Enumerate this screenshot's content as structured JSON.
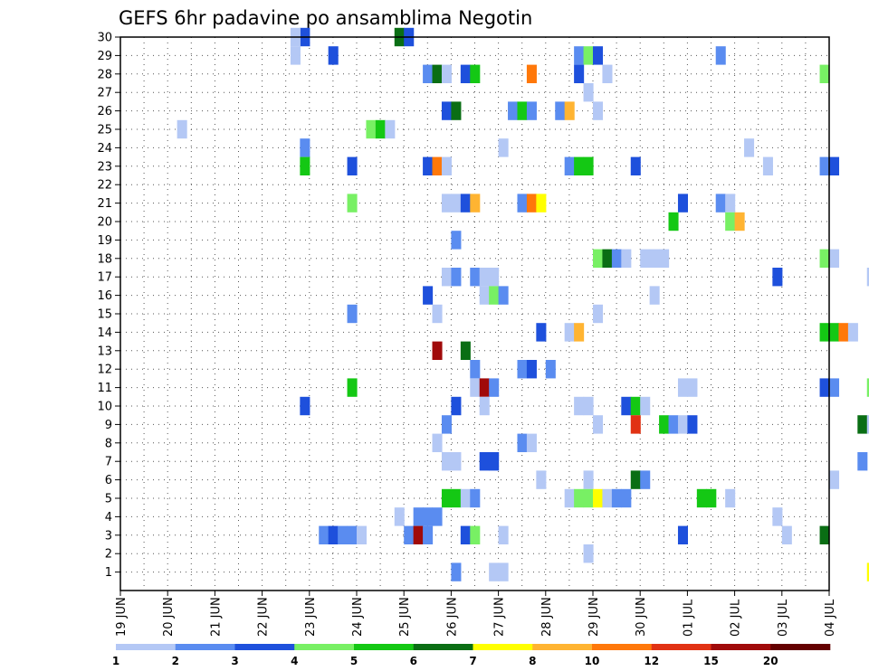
{
  "chart_data": {
    "type": "heatmap",
    "title": "GEFS 6hr padavine po ansamblima Negotin",
    "xlabel": "",
    "ylabel": "",
    "x_tick_labels": [
      "19 JUN",
      "20 JUN",
      "21 JUN",
      "22 JUN",
      "23 JUN",
      "24 JUN",
      "25 JUN",
      "26 JUN",
      "27 JUN",
      "28 JUN",
      "29 JUN",
      "30 JUN",
      "01 JUL",
      "02 JUL",
      "03 JUL",
      "04 JUL"
    ],
    "y_tick_labels": [
      "1",
      "2",
      "3",
      "4",
      "5",
      "6",
      "7",
      "8",
      "9",
      "10",
      "11",
      "12",
      "13",
      "14",
      "15",
      "16",
      "17",
      "18",
      "19",
      "20",
      "21",
      "22",
      "23",
      "24",
      "25",
      "26",
      "27",
      "28",
      "29",
      "30"
    ],
    "grid": true,
    "colorbar": {
      "placement": "bottom",
      "labels": [
        "1",
        "2",
        "3",
        "4",
        "5",
        "6",
        "7",
        "8",
        "10",
        "12",
        "15",
        "20"
      ],
      "colors": [
        "#b4c8f5",
        "#5a8cf0",
        "#1e50dc",
        "#78f064",
        "#14c814",
        "#0a6e14",
        "#ffff00",
        "#ffb432",
        "#ff780a",
        "#e13214",
        "#a00a0a",
        "#640000"
      ]
    },
    "cells": [
      {
        "member": 30,
        "day": 22.8,
        "cls": 3
      },
      {
        "member": 30,
        "day": 24.8,
        "cls": 6
      },
      {
        "member": 30,
        "day": 25.0,
        "cls": 3
      },
      {
        "member": 30,
        "day": 22.6,
        "cls": 1
      },
      {
        "member": 29,
        "day": 22.6,
        "cls": 1
      },
      {
        "member": 29,
        "day": 23.4,
        "cls": 3
      },
      {
        "member": 29,
        "day": 28.6,
        "cls": 2
      },
      {
        "member": 29,
        "day": 28.8,
        "cls": 4
      },
      {
        "member": 29,
        "day": 29.0,
        "cls": 3
      },
      {
        "member": 29,
        "day": 31.6,
        "cls": 2
      },
      {
        "member": 28,
        "day": 25.4,
        "cls": 2
      },
      {
        "member": 28,
        "day": 25.6,
        "cls": 6
      },
      {
        "member": 28,
        "day": 25.8,
        "cls": 1
      },
      {
        "member": 28,
        "day": 26.2,
        "cls": 3
      },
      {
        "member": 28,
        "day": 26.4,
        "cls": 5
      },
      {
        "member": 28,
        "day": 27.6,
        "cls": 9
      },
      {
        "member": 28,
        "day": 28.6,
        "cls": 3
      },
      {
        "member": 28,
        "day": 29.2,
        "cls": 1
      },
      {
        "member": 28,
        "day": 33.8,
        "cls": 4
      },
      {
        "member": 27,
        "day": 28.8,
        "cls": 1
      },
      {
        "member": 26,
        "day": 25.8,
        "cls": 3
      },
      {
        "member": 26,
        "day": 26.0,
        "cls": 6
      },
      {
        "member": 26,
        "day": 27.2,
        "cls": 2
      },
      {
        "member": 26,
        "day": 27.4,
        "cls": 5
      },
      {
        "member": 26,
        "day": 27.6,
        "cls": 2
      },
      {
        "member": 26,
        "day": 28.2,
        "cls": 2
      },
      {
        "member": 26,
        "day": 28.4,
        "cls": 8
      },
      {
        "member": 26,
        "day": 29.0,
        "cls": 1
      },
      {
        "member": 25,
        "day": 20.2,
        "cls": 1
      },
      {
        "member": 25,
        "day": 24.2,
        "cls": 4
      },
      {
        "member": 25,
        "day": 24.4,
        "cls": 5
      },
      {
        "member": 25,
        "day": 24.6,
        "cls": 1
      },
      {
        "member": 24,
        "day": 22.8,
        "cls": 2
      },
      {
        "member": 24,
        "day": 27.0,
        "cls": 1
      },
      {
        "member": 24,
        "day": 32.2,
        "cls": 1
      },
      {
        "member": 23,
        "day": 22.8,
        "cls": 5
      },
      {
        "member": 23,
        "day": 23.8,
        "cls": 3
      },
      {
        "member": 23,
        "day": 25.4,
        "cls": 3
      },
      {
        "member": 23,
        "day": 25.6,
        "cls": 9
      },
      {
        "member": 23,
        "day": 25.8,
        "cls": 1
      },
      {
        "member": 23,
        "day": 28.4,
        "cls": 2
      },
      {
        "member": 23,
        "day": 28.6,
        "cls": 5
      },
      {
        "member": 23,
        "day": 28.8,
        "cls": 5
      },
      {
        "member": 23,
        "day": 29.8,
        "cls": 3
      },
      {
        "member": 23,
        "day": 32.6,
        "cls": 1
      },
      {
        "member": 23,
        "day": 33.8,
        "cls": 2
      },
      {
        "member": 23,
        "day": 34.0,
        "cls": 3
      },
      {
        "member": 21,
        "day": 23.8,
        "cls": 4
      },
      {
        "member": 21,
        "day": 25.8,
        "cls": 1
      },
      {
        "member": 21,
        "day": 26.0,
        "cls": 1
      },
      {
        "member": 21,
        "day": 26.2,
        "cls": 3
      },
      {
        "member": 21,
        "day": 26.4,
        "cls": 8
      },
      {
        "member": 21,
        "day": 27.4,
        "cls": 2
      },
      {
        "member": 21,
        "day": 27.6,
        "cls": 9
      },
      {
        "member": 21,
        "day": 27.8,
        "cls": 7
      },
      {
        "member": 21,
        "day": 30.8,
        "cls": 3
      },
      {
        "member": 21,
        "day": 31.6,
        "cls": 2
      },
      {
        "member": 21,
        "day": 31.8,
        "cls": 1
      },
      {
        "member": 20,
        "day": 30.6,
        "cls": 5
      },
      {
        "member": 20,
        "day": 31.8,
        "cls": 4
      },
      {
        "member": 20,
        "day": 32.0,
        "cls": 8
      },
      {
        "member": 19,
        "day": 26.0,
        "cls": 2
      },
      {
        "member": 18,
        "day": 29.0,
        "cls": 4
      },
      {
        "member": 18,
        "day": 29.2,
        "cls": 6
      },
      {
        "member": 18,
        "day": 29.4,
        "cls": 2
      },
      {
        "member": 18,
        "day": 29.6,
        "cls": 1
      },
      {
        "member": 18,
        "day": 30.0,
        "cls": 1
      },
      {
        "member": 18,
        "day": 30.2,
        "cls": 1
      },
      {
        "member": 18,
        "day": 30.4,
        "cls": 1
      },
      {
        "member": 18,
        "day": 33.8,
        "cls": 4
      },
      {
        "member": 18,
        "day": 34.0,
        "cls": 1
      },
      {
        "member": 17,
        "day": 25.8,
        "cls": 1
      },
      {
        "member": 17,
        "day": 26.0,
        "cls": 2
      },
      {
        "member": 17,
        "day": 26.4,
        "cls": 2
      },
      {
        "member": 17,
        "day": 26.6,
        "cls": 1
      },
      {
        "member": 17,
        "day": 26.8,
        "cls": 1
      },
      {
        "member": 17,
        "day": 32.8,
        "cls": 3
      },
      {
        "member": 17,
        "day": 34.8,
        "cls": 1
      },
      {
        "member": 16,
        "day": 25.4,
        "cls": 3
      },
      {
        "member": 16,
        "day": 26.6,
        "cls": 1
      },
      {
        "member": 16,
        "day": 26.8,
        "cls": 4
      },
      {
        "member": 16,
        "day": 27.0,
        "cls": 2
      },
      {
        "member": 16,
        "day": 30.2,
        "cls": 1
      },
      {
        "member": 15,
        "day": 23.8,
        "cls": 2
      },
      {
        "member": 15,
        "day": 25.6,
        "cls": 1
      },
      {
        "member": 15,
        "day": 29.0,
        "cls": 1
      },
      {
        "member": 14,
        "day": 27.8,
        "cls": 3
      },
      {
        "member": 14,
        "day": 28.4,
        "cls": 1
      },
      {
        "member": 14,
        "day": 28.6,
        "cls": 8
      },
      {
        "member": 14,
        "day": 33.8,
        "cls": 5
      },
      {
        "member": 14,
        "day": 34.0,
        "cls": 5
      },
      {
        "member": 14,
        "day": 34.2,
        "cls": 9
      },
      {
        "member": 14,
        "day": 34.4,
        "cls": 1
      },
      {
        "member": 13,
        "day": 25.6,
        "cls": 11
      },
      {
        "member": 13,
        "day": 26.2,
        "cls": 6
      },
      {
        "member": 12,
        "day": 26.4,
        "cls": 2
      },
      {
        "member": 12,
        "day": 27.4,
        "cls": 2
      },
      {
        "member": 12,
        "day": 27.6,
        "cls": 3
      },
      {
        "member": 12,
        "day": 28.0,
        "cls": 2
      },
      {
        "member": 11,
        "day": 23.8,
        "cls": 5
      },
      {
        "member": 11,
        "day": 26.4,
        "cls": 1
      },
      {
        "member": 11,
        "day": 26.6,
        "cls": 11
      },
      {
        "member": 11,
        "day": 26.8,
        "cls": 2
      },
      {
        "member": 11,
        "day": 30.8,
        "cls": 1
      },
      {
        "member": 11,
        "day": 31.0,
        "cls": 1
      },
      {
        "member": 11,
        "day": 33.8,
        "cls": 3
      },
      {
        "member": 11,
        "day": 34.0,
        "cls": 2
      },
      {
        "member": 11,
        "day": 34.8,
        "cls": 4
      },
      {
        "member": 10,
        "day": 22.8,
        "cls": 3
      },
      {
        "member": 10,
        "day": 26.0,
        "cls": 3
      },
      {
        "member": 10,
        "day": 26.6,
        "cls": 1
      },
      {
        "member": 10,
        "day": 28.6,
        "cls": 1
      },
      {
        "member": 10,
        "day": 28.8,
        "cls": 1
      },
      {
        "member": 10,
        "day": 29.6,
        "cls": 3
      },
      {
        "member": 10,
        "day": 29.8,
        "cls": 5
      },
      {
        "member": 10,
        "day": 30.0,
        "cls": 1
      },
      {
        "member": 9,
        "day": 25.8,
        "cls": 2
      },
      {
        "member": 9,
        "day": 29.0,
        "cls": 1
      },
      {
        "member": 9,
        "day": 29.8,
        "cls": 10
      },
      {
        "member": 9,
        "day": 30.4,
        "cls": 5
      },
      {
        "member": 9,
        "day": 30.6,
        "cls": 2
      },
      {
        "member": 9,
        "day": 30.8,
        "cls": 1
      },
      {
        "member": 9,
        "day": 31.0,
        "cls": 3
      },
      {
        "member": 9,
        "day": 34.6,
        "cls": 6
      },
      {
        "member": 9,
        "day": 34.8,
        "cls": 1
      },
      {
        "member": 8,
        "day": 25.6,
        "cls": 1
      },
      {
        "member": 8,
        "day": 27.4,
        "cls": 2
      },
      {
        "member": 8,
        "day": 27.6,
        "cls": 1
      },
      {
        "member": 7,
        "day": 25.8,
        "cls": 1
      },
      {
        "member": 7,
        "day": 26.0,
        "cls": 1
      },
      {
        "member": 7,
        "day": 26.6,
        "cls": 3
      },
      {
        "member": 7,
        "day": 26.8,
        "cls": 3
      },
      {
        "member": 7,
        "day": 34.6,
        "cls": 2
      },
      {
        "member": 6,
        "day": 27.8,
        "cls": 1
      },
      {
        "member": 6,
        "day": 28.8,
        "cls": 1
      },
      {
        "member": 6,
        "day": 29.8,
        "cls": 6
      },
      {
        "member": 6,
        "day": 30.0,
        "cls": 2
      },
      {
        "member": 6,
        "day": 34.0,
        "cls": 1
      },
      {
        "member": 5,
        "day": 25.8,
        "cls": 5
      },
      {
        "member": 5,
        "day": 26.0,
        "cls": 5
      },
      {
        "member": 5,
        "day": 26.2,
        "cls": 1
      },
      {
        "member": 5,
        "day": 26.4,
        "cls": 2
      },
      {
        "member": 5,
        "day": 28.4,
        "cls": 1
      },
      {
        "member": 5,
        "day": 28.6,
        "cls": 4
      },
      {
        "member": 5,
        "day": 28.8,
        "cls": 4
      },
      {
        "member": 5,
        "day": 29.0,
        "cls": 7
      },
      {
        "member": 5,
        "day": 29.2,
        "cls": 1
      },
      {
        "member": 5,
        "day": 29.4,
        "cls": 2
      },
      {
        "member": 5,
        "day": 29.6,
        "cls": 2
      },
      {
        "member": 5,
        "day": 31.2,
        "cls": 5
      },
      {
        "member": 5,
        "day": 31.4,
        "cls": 5
      },
      {
        "member": 5,
        "day": 31.8,
        "cls": 1
      },
      {
        "member": 4,
        "day": 24.8,
        "cls": 1
      },
      {
        "member": 4,
        "day": 25.2,
        "cls": 2
      },
      {
        "member": 4,
        "day": 25.4,
        "cls": 2
      },
      {
        "member": 4,
        "day": 25.6,
        "cls": 2
      },
      {
        "member": 4,
        "day": 32.8,
        "cls": 1
      },
      {
        "member": 3,
        "day": 23.2,
        "cls": 2
      },
      {
        "member": 3,
        "day": 23.4,
        "cls": 3
      },
      {
        "member": 3,
        "day": 23.6,
        "cls": 2
      },
      {
        "member": 3,
        "day": 23.8,
        "cls": 2
      },
      {
        "member": 3,
        "day": 24.0,
        "cls": 1
      },
      {
        "member": 3,
        "day": 25.0,
        "cls": 2
      },
      {
        "member": 3,
        "day": 25.2,
        "cls": 11
      },
      {
        "member": 3,
        "day": 25.4,
        "cls": 2
      },
      {
        "member": 3,
        "day": 26.2,
        "cls": 3
      },
      {
        "member": 3,
        "day": 26.4,
        "cls": 4
      },
      {
        "member": 3,
        "day": 27.0,
        "cls": 1
      },
      {
        "member": 3,
        "day": 30.8,
        "cls": 3
      },
      {
        "member": 3,
        "day": 33.0,
        "cls": 1
      },
      {
        "member": 3,
        "day": 33.8,
        "cls": 6
      },
      {
        "member": 2,
        "day": 28.8,
        "cls": 1
      },
      {
        "member": 1,
        "day": 26.0,
        "cls": 2
      },
      {
        "member": 1,
        "day": 26.8,
        "cls": 1
      },
      {
        "member": 1,
        "day": 27.0,
        "cls": 1
      },
      {
        "member": 1,
        "day": 34.8,
        "cls": 7
      }
    ]
  }
}
